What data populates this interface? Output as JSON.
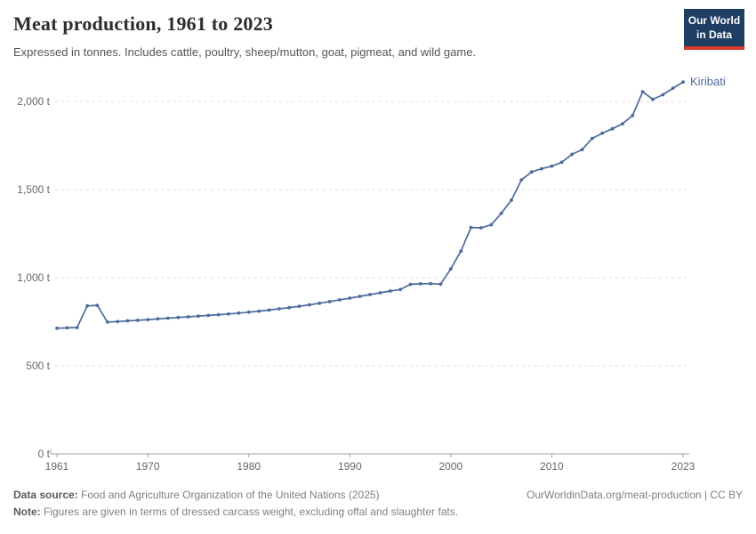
{
  "header": {
    "title": "Meat production, 1961 to 2023",
    "subtitle": "Expressed in tonnes. Includes cattle, poultry, sheep/mutton, goat, pigmeat, and wild game.",
    "logo": {
      "line1": "Our World",
      "line2": "in Data",
      "bg_color": "#1d3d63",
      "bar_color": "#d4372c"
    }
  },
  "footer": {
    "data_source_label": "Data source:",
    "data_source": "Food and Agriculture Organization of the United Nations (2025)",
    "link": "OurWorldinData.org/meat-production | CC BY",
    "note_label": "Note:",
    "note": "Figures are given in terms of dressed carcass weight, excluding offal and slaughter fats."
  },
  "chart_data": {
    "type": "line",
    "title": "Meat production, 1961 to 2023",
    "xlabel": "",
    "ylabel": "",
    "unit": "t",
    "grid": "dashed-horizontal",
    "legend": "end-of-line-label",
    "ylim": [
      0,
      2130
    ],
    "yticks": {
      "values": [
        0,
        500,
        1000,
        1500,
        2000
      ],
      "labels": [
        "0 t",
        "500 t",
        "1,000 t",
        "1,500 t",
        "2,000 t"
      ]
    },
    "xticks": [
      1961,
      1970,
      1980,
      1990,
      2000,
      2010,
      2023
    ],
    "x": [
      1961,
      1962,
      1963,
      1964,
      1965,
      1966,
      1967,
      1968,
      1969,
      1970,
      1971,
      1972,
      1973,
      1974,
      1975,
      1976,
      1977,
      1978,
      1979,
      1980,
      1981,
      1982,
      1983,
      1984,
      1985,
      1986,
      1987,
      1988,
      1989,
      1990,
      1991,
      1992,
      1993,
      1994,
      1995,
      1996,
      1997,
      1998,
      1999,
      2000,
      2001,
      2002,
      2003,
      2004,
      2005,
      2006,
      2007,
      2008,
      2009,
      2010,
      2011,
      2012,
      2013,
      2014,
      2015,
      2016,
      2017,
      2018,
      2019,
      2020,
      2021,
      2022,
      2023
    ],
    "series": [
      {
        "name": "Kiribati",
        "color": "#4C6A9C",
        "values": [
          713,
          715,
          717,
          840,
          843,
          748,
          751,
          755,
          758,
          762,
          766,
          770,
          774,
          778,
          782,
          786,
          790,
          794,
          799,
          804,
          810,
          816,
          823,
          830,
          838,
          846,
          855,
          864,
          874,
          884,
          894,
          904,
          914,
          924,
          933,
          962,
          965,
          966,
          963,
          1050,
          1150,
          1285,
          1283,
          1300,
          1365,
          1440,
          1555,
          1600,
          1618,
          1633,
          1655,
          1700,
          1727,
          1790,
          1820,
          1845,
          1873,
          1920,
          2055,
          2012,
          2038,
          2075,
          2110
        ]
      }
    ],
    "axis_color": "#a5a5a5",
    "gridline_color": "#dcdcdc",
    "tick_label_color": "#666666"
  }
}
